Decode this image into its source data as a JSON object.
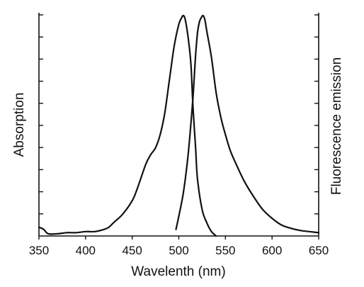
{
  "chart_data": {
    "type": "line",
    "xlabel": "Wavelenth (nm)",
    "ylabel_left": "Absorption",
    "ylabel_right": "Fluorescence emission",
    "xlim": [
      350,
      650
    ],
    "ylim": [
      0,
      1
    ],
    "x_ticks": [
      350,
      400,
      450,
      500,
      550,
      600,
      650
    ],
    "y_tick_count_left": 10,
    "y_tick_count_right": 10,
    "grid": false,
    "series": [
      {
        "x": [
          350,
          355,
          360,
          370,
          380,
          390,
          400,
          410,
          420,
          425,
          430,
          440,
          450,
          455,
          460,
          465,
          470,
          475,
          480,
          485,
          490,
          495,
          500,
          503,
          505,
          507,
          510,
          513,
          515,
          518,
          520,
          525,
          530,
          535,
          540
        ],
        "y": [
          0.04,
          0.03,
          0.01,
          0.01,
          0.015,
          0.015,
          0.02,
          0.02,
          0.03,
          0.04,
          0.06,
          0.1,
          0.16,
          0.21,
          0.27,
          0.33,
          0.37,
          0.4,
          0.46,
          0.56,
          0.71,
          0.86,
          0.96,
          0.99,
          1.0,
          0.98,
          0.9,
          0.78,
          0.6,
          0.4,
          0.26,
          0.12,
          0.06,
          0.02,
          0.0
        ]
      },
      {
        "x": [
          497,
          500,
          505,
          510,
          515,
          518,
          520,
          522,
          524,
          526,
          528,
          530,
          535,
          540,
          545,
          550,
          555,
          560,
          570,
          580,
          590,
          600,
          610,
          620,
          630,
          640,
          650
        ],
        "y": [
          0.03,
          0.09,
          0.2,
          0.37,
          0.62,
          0.82,
          0.92,
          0.97,
          0.99,
          1.0,
          0.98,
          0.93,
          0.81,
          0.65,
          0.54,
          0.46,
          0.39,
          0.34,
          0.25,
          0.18,
          0.12,
          0.08,
          0.05,
          0.035,
          0.025,
          0.02,
          0.015
        ]
      }
    ]
  }
}
